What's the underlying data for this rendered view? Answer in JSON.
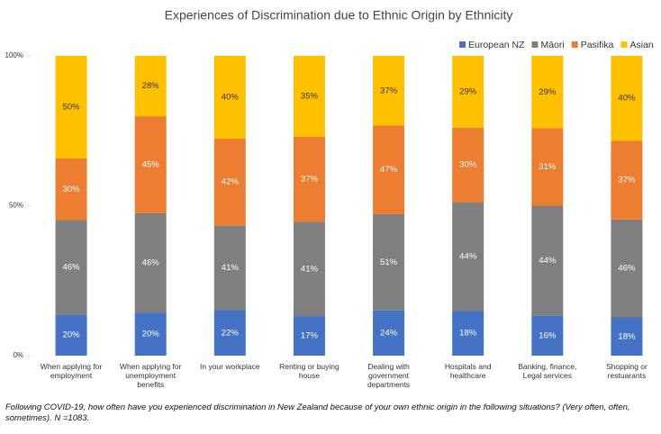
{
  "chart_data": {
    "type": "bar",
    "stacked": "percent",
    "title": "Experiences of Discrimination due to Ethnic Origin by Ethnicity",
    "categories": [
      "When applying for employment",
      "When applying for unemployment benefits",
      "In your workplace",
      "Renting or buying house",
      "Dealing with government departments",
      "Hospitals and healthcare",
      "Banking, finance, Legal services",
      "Shopping or restuarants"
    ],
    "series": [
      {
        "name": "European NZ",
        "color": "#4472c4",
        "values": [
          20,
          20,
          22,
          17,
          24,
          18,
          16,
          18
        ],
        "value_labels": [
          "20%",
          "20%",
          "22%",
          "17%",
          "24%",
          "18%",
          "16%",
          "18%"
        ]
      },
      {
        "name": "Māori",
        "color": "#7f7f7f",
        "values": [
          46,
          46,
          41,
          41,
          51,
          44,
          44,
          46
        ],
        "value_labels": [
          "46%",
          "46%",
          "41%",
          "41%",
          "51%",
          "44%",
          "44%",
          "46%"
        ]
      },
      {
        "name": "Pasifika",
        "color": "#ed7d31",
        "values": [
          30,
          45,
          42,
          37,
          47,
          30,
          31,
          37
        ],
        "value_labels": [
          "30%",
          "45%",
          "42%",
          "37%",
          "47%",
          "30%",
          "31%",
          "37%"
        ]
      },
      {
        "name": "Asian",
        "color": "#ffc000",
        "values": [
          50,
          28,
          40,
          35,
          37,
          29,
          29,
          40
        ],
        "value_labels": [
          "50%",
          "28%",
          "40%",
          "35%",
          "37%",
          "29%",
          "29%",
          "40%"
        ]
      }
    ],
    "ylim": [
      0,
      100
    ],
    "yticks": [
      {
        "value": 0,
        "label": "0%"
      },
      {
        "value": 50,
        "label": "50%"
      },
      {
        "value": 100,
        "label": "100%"
      }
    ],
    "legend": "top-right",
    "note": "Following COVID-19, how often have you experienced discrimination in New Zealand because of your own ethnic origin in the following situations? (Very often, often, sometimes). N =1083."
  }
}
